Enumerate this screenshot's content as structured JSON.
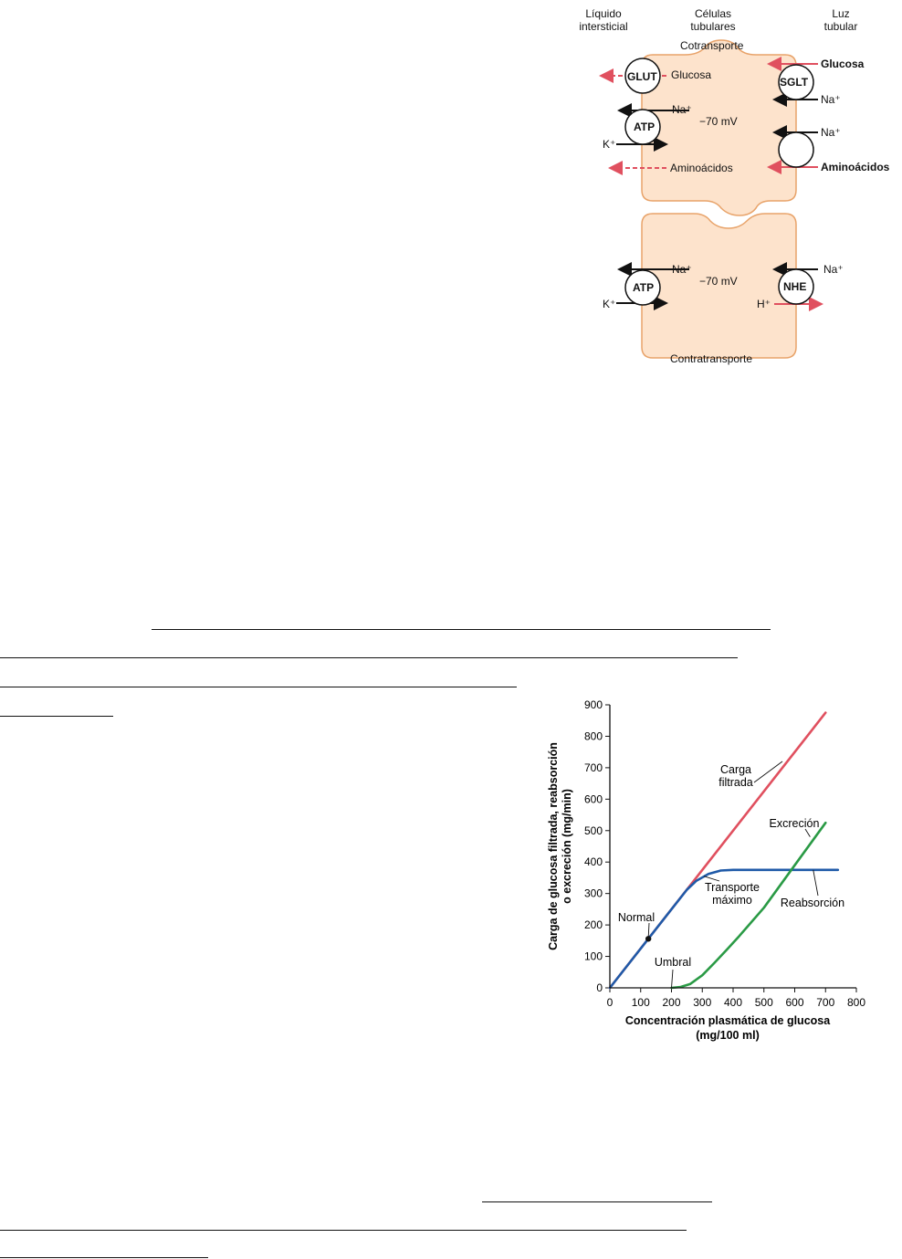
{
  "diagram": {
    "col_interstitial": "Líquido\nintersticial",
    "col_tubular_cells": "Células\ntubulares",
    "col_lumen": "Luz\ntubular",
    "top_cell": {
      "title": "Cotransporte",
      "voltage": "−70 mV",
      "glut": "GLUT",
      "glut_glucose": "Glucosa",
      "atp": "ATP",
      "na_out": "Na⁺",
      "k_in": "K⁺",
      "aminoacids_out": "Aminoácidos",
      "sglt": "SGLT",
      "lumen_glucose": "Glucosa",
      "sglt_na": "Na⁺",
      "aa_na": "Na⁺",
      "lumen_aminoacids": "Aminoácidos"
    },
    "bottom_cell": {
      "title": "Contratransporte",
      "voltage": "−70 mV",
      "atp": "ATP",
      "na_out": "Na⁺",
      "k_in": "K⁺",
      "nhe": "NHE",
      "nhe_na": "Na⁺",
      "h_out": "H⁺"
    }
  },
  "chart_data": {
    "type": "line",
    "xlabel": "Concentración plasmática de glucosa\n(mg/100 ml)",
    "ylabel": "Carga de glucosa filtrada, reabsorción\no excreción (mg/min)",
    "xlim": [
      0,
      800
    ],
    "ylim": [
      0,
      900
    ],
    "xticks": [
      0,
      100,
      200,
      300,
      400,
      500,
      600,
      700,
      800
    ],
    "yticks": [
      0,
      100,
      200,
      300,
      400,
      500,
      600,
      700,
      800,
      900
    ],
    "series": [
      {
        "name": "Carga filtrada",
        "color": "#e0505f",
        "x": [
          0,
          700
        ],
        "y": [
          0,
          875
        ]
      },
      {
        "name": "Transporte máximo",
        "color": "#1f5aa8",
        "x": [
          0,
          100,
          200,
          250,
          280,
          320,
          360,
          400,
          500,
          600,
          700,
          740
        ],
        "y": [
          0,
          125,
          250,
          312,
          340,
          362,
          373,
          375,
          375,
          375,
          375,
          375
        ]
      },
      {
        "name": "Excreción",
        "color": "#2a9a45",
        "x": [
          200,
          230,
          260,
          300,
          340,
          380,
          420,
          500,
          600,
          700
        ],
        "y": [
          0,
          3,
          12,
          40,
          80,
          122,
          165,
          255,
          390,
          525
        ]
      }
    ],
    "annotations": [
      {
        "text": "Carga\nfiltrada"
      },
      {
        "text": "Excreción"
      },
      {
        "text": "Transporte\nmáximo"
      },
      {
        "text": "Reabsorción"
      },
      {
        "text": "Normal",
        "x": 125,
        "y": 156
      },
      {
        "text": "Umbral",
        "x": 200,
        "y": 0
      }
    ]
  },
  "colors": {
    "cell_fill": "#fde3cc",
    "cell_border": "#e8a36a",
    "arrow_red": "#e0505f",
    "arrow_black": "#111111"
  }
}
